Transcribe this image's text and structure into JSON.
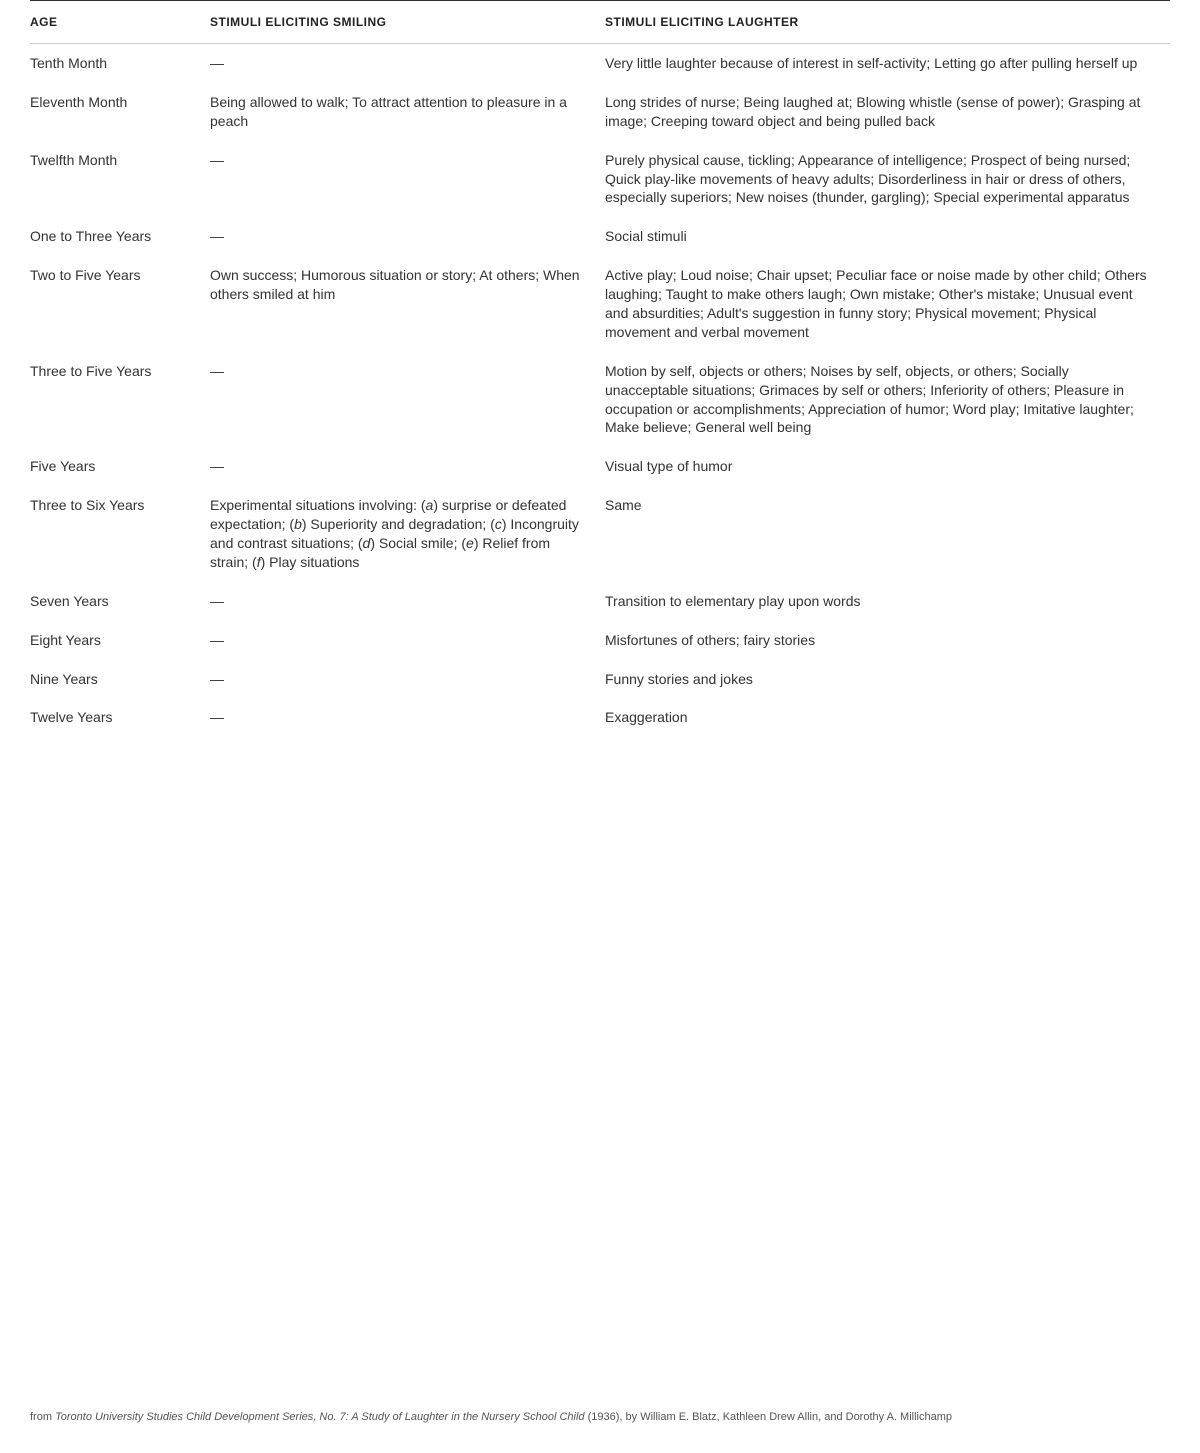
{
  "table": {
    "columns": {
      "age": "AGE",
      "smiling": "STIMULI ELICITING SMILING",
      "laughter": "STIMULI ELICITING LAUGHTER"
    },
    "emdash": "—",
    "rows": [
      {
        "age": "Tenth Month",
        "smiling": null,
        "laughter": "Very little laughter because of interest in self-activity; Letting go after pulling herself up"
      },
      {
        "age": "Eleventh Month",
        "smiling": "Being allowed to walk; To attract attention to pleasure in a peach",
        "laughter": "Long strides of nurse; Being laughed at; Blowing whistle (sense of power); Grasping at image; Creeping toward object and being pulled back"
      },
      {
        "age": "Twelfth Month",
        "smiling": null,
        "laughter": "Purely physical cause, tickling; Appearance of intelligence; Prospect of being nursed; Quick play-like movements of heavy adults; Disorderliness in hair or dress of others, especially superiors; New noises (thunder, gargling); Special experimental apparatus"
      },
      {
        "age": "One to Three Years",
        "smiling": null,
        "laughter": "Social stimuli"
      },
      {
        "age": "Two to Five Years",
        "smiling": "Own success; Humorous situation or story; At others; When others smiled at him",
        "laughter": "Active play; Loud noise; Chair upset; Peculiar face or noise made by other child; Others laughing; Taught to make others laugh; Own mistake; Other's mistake; Unusual event and absurdities; Adult's suggestion in funny story; Physical movement; Physical movement and verbal movement"
      },
      {
        "age": "Three to Five Years",
        "smiling": null,
        "laughter": "Motion by self, objects or others; Noises by self, objects, or others; Socially unacceptable situations; Grimaces by self or others; Inferiority of others; Pleasure in occupation or accomplishments; Appreciation of humor; Word play; Imitative laughter; Make believe; General well being"
      },
      {
        "age": "Five Years",
        "smiling": null,
        "laughter": "Visual type of humor"
      },
      {
        "age": "Three to Six Years",
        "smiling_html": "Experimental situations involving: (<span class=\"italic-letter\">a</span>) surprise or defeated expectation; (<span class=\"italic-letter\">b</span>) Superiority and degradation; (<span class=\"italic-letter\">c</span>) Incongruity and contrast situations; (<span class=\"italic-letter\">d</span>) Social smile; (<span class=\"italic-letter\">e</span>) Relief from strain; (<span class=\"italic-letter\">f</span>) Play situations",
        "laughter": "Same"
      },
      {
        "age": "Seven Years",
        "smiling": null,
        "laughter": "Transition to elementary play upon words"
      },
      {
        "age": "Eight Years",
        "smiling": null,
        "laughter": "Misfortunes of others; fairy stories"
      },
      {
        "age": "Nine Years",
        "smiling": null,
        "laughter": "Funny stories and jokes"
      },
      {
        "age": "Twelve Years",
        "smiling": null,
        "laughter": "Exaggeration"
      }
    ]
  },
  "footer": {
    "prefix": "from ",
    "source_title": "Toronto University Studies Child Development Series, No. 7: A Study of Laughter in the Nursery School Child",
    "year_authors": " (1936), by William E. Blatz, Kathleen Drew Allin, and Dorothy A. Millichamp"
  },
  "styling": {
    "background_color": "#ffffff",
    "text_color": "#333333",
    "header_border_top": "#333333",
    "header_border_bottom": "#cccccc",
    "header_fontsize": 12,
    "header_fontweight": 700,
    "body_fontsize": 14,
    "footer_fontsize": 11,
    "col_widths": {
      "age": 180,
      "smiling": 395,
      "laughter": "auto"
    }
  }
}
